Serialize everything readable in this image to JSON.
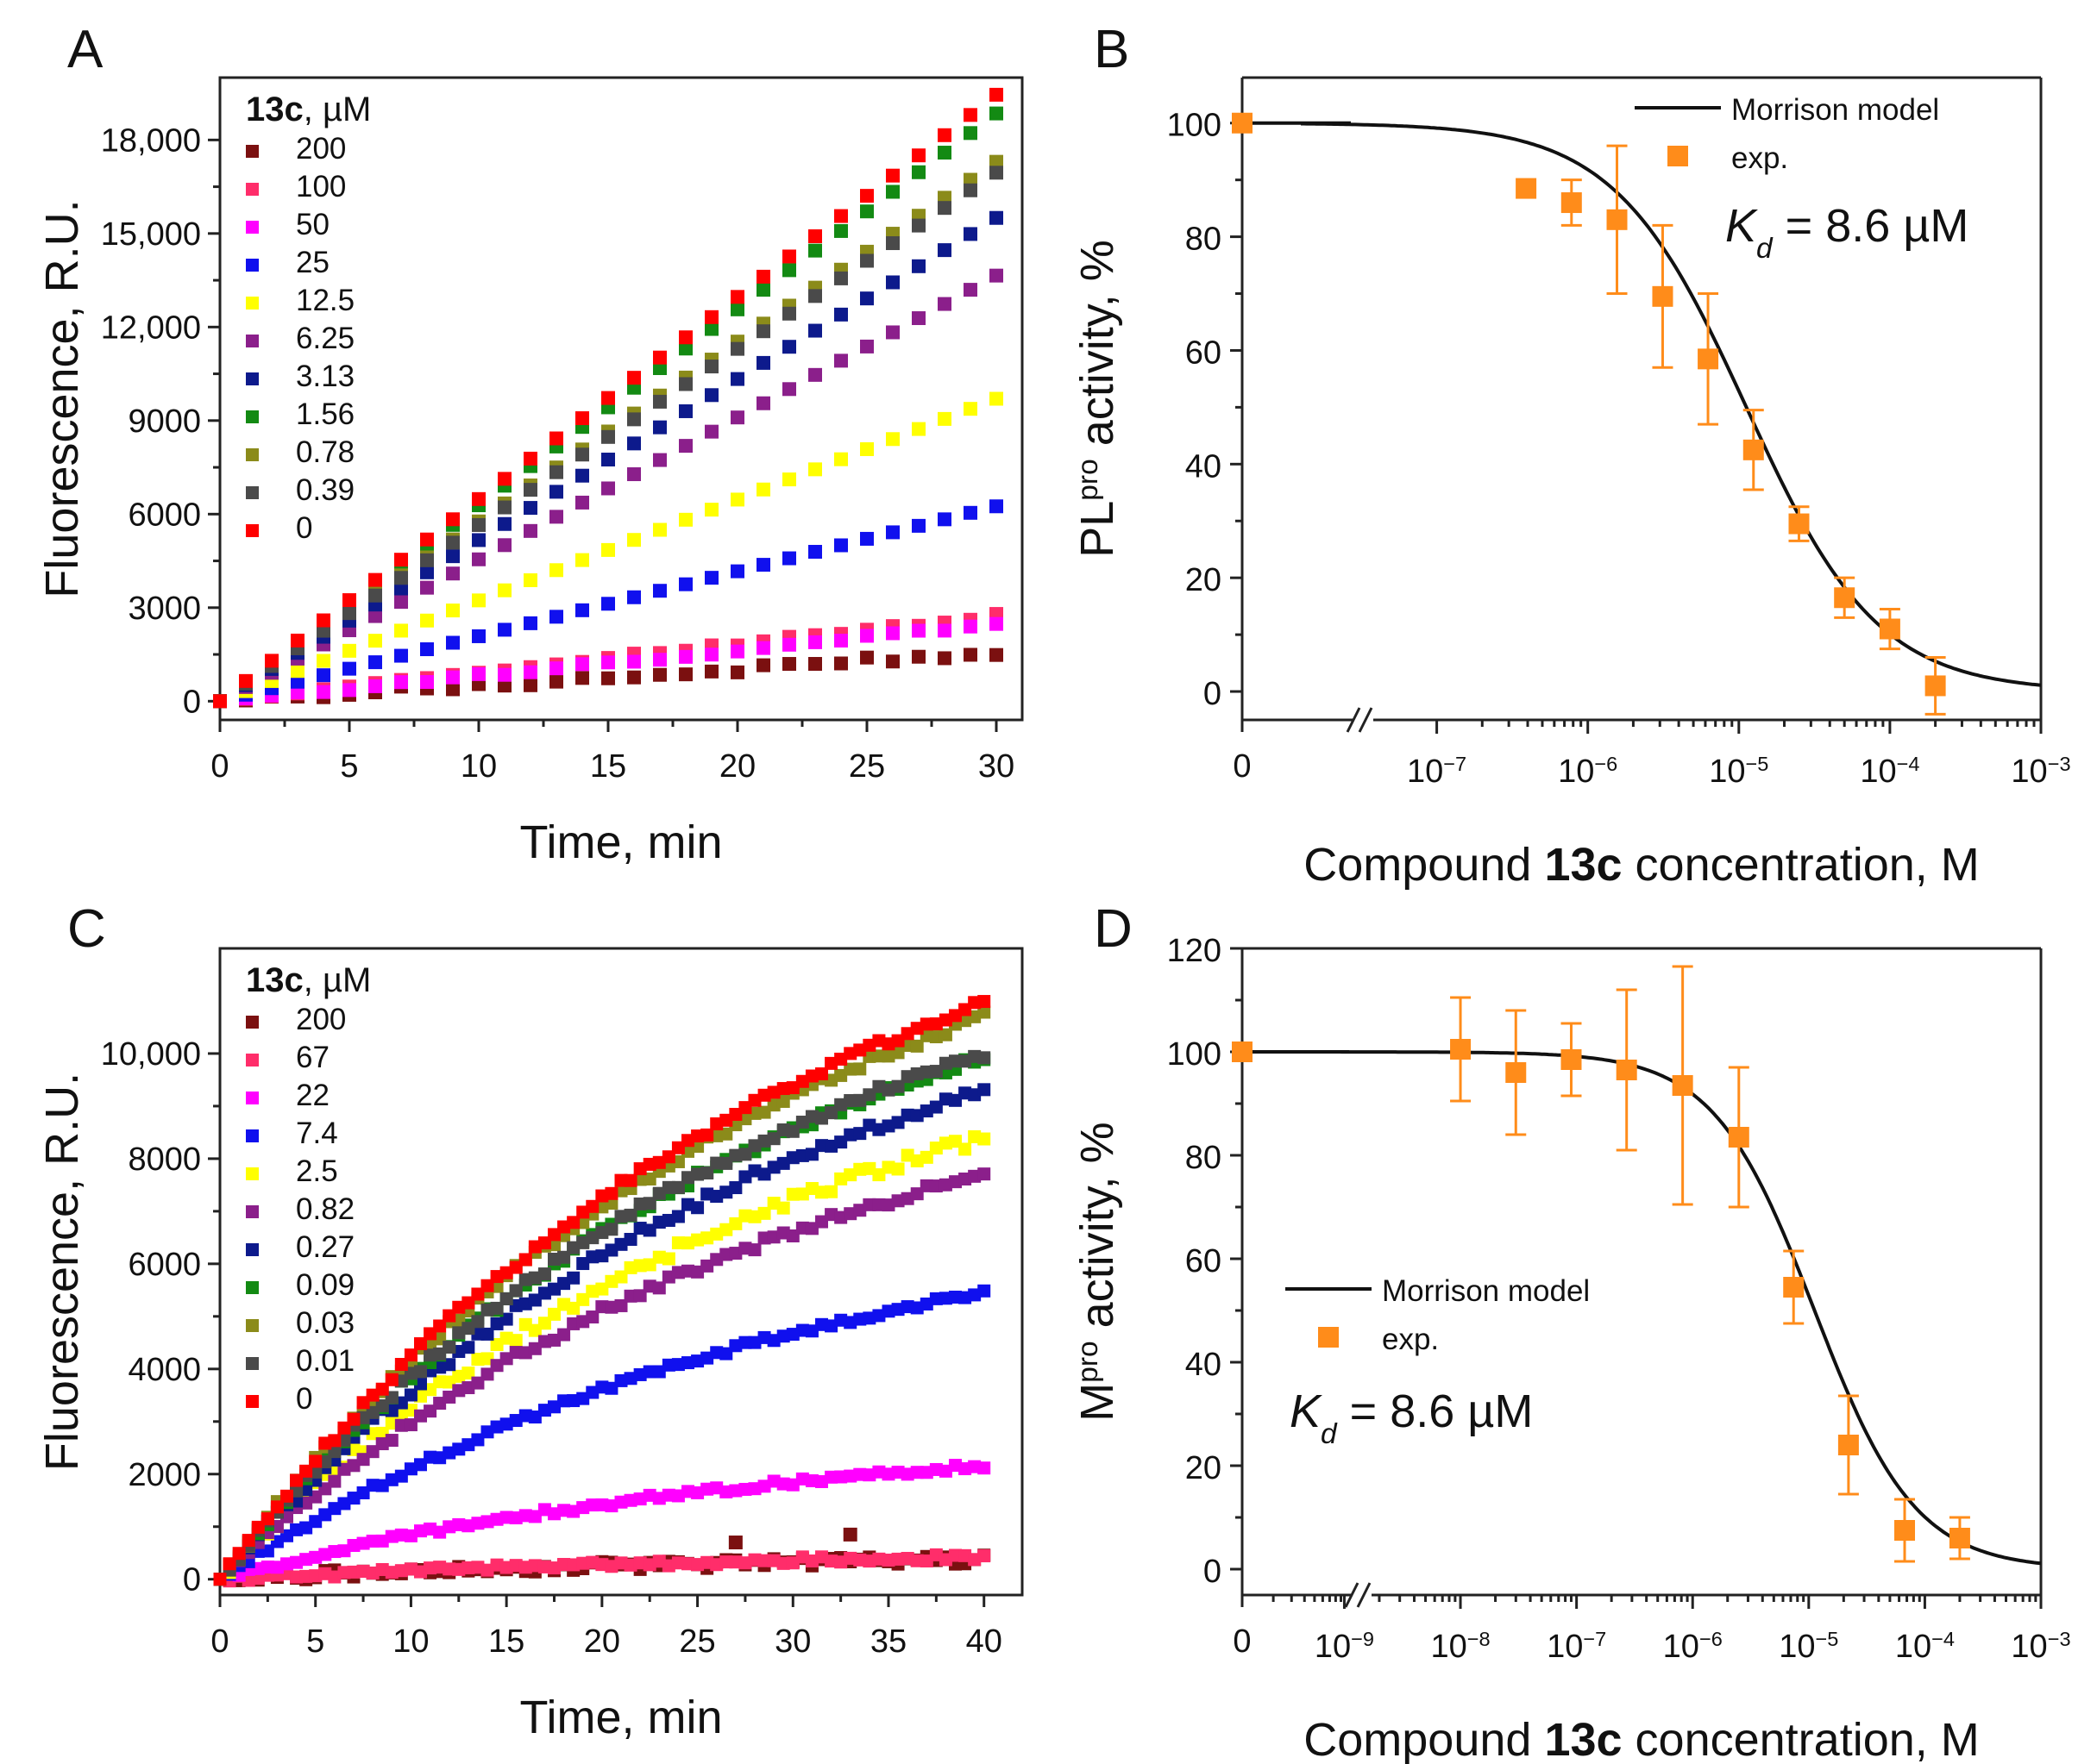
{
  "figure": {
    "panels": [
      {
        "letter": "A"
      },
      {
        "letter": "B"
      },
      {
        "letter": "C"
      },
      {
        "letter": "D"
      }
    ]
  },
  "chart_data": [
    {
      "panel": "A",
      "type": "scatter",
      "title": "",
      "xlabel": "Time, min",
      "ylabel": "Fluorescence, R.U.",
      "xlim": [
        0,
        31
      ],
      "ylim": [
        -600,
        20000
      ],
      "xticks": [
        0,
        5,
        10,
        15,
        20,
        25,
        30
      ],
      "yticks": [
        0,
        3000,
        6000,
        9000,
        12000,
        15000,
        18000
      ],
      "ytick_labels": [
        "0",
        "3000",
        "6000",
        "9000",
        "12,000",
        "15,000",
        "18,000"
      ],
      "legend_title_bold": "13c",
      "legend_title_rest": ", µM",
      "legend_position": "top-left",
      "grid": false,
      "series": [
        {
          "name": "200",
          "color": "#7b1010",
          "final": 1550,
          "noise": 110
        },
        {
          "name": "100",
          "color": "#ff2d6a",
          "final": 2750,
          "noise": 60
        },
        {
          "name": "50",
          "color": "#ff00ff",
          "final": 2450,
          "noise": 60
        },
        {
          "name": "25",
          "color": "#1010ee",
          "final": 6250,
          "noise": 0
        },
        {
          "name": "12.5",
          "color": "#ffff00",
          "final": 9700,
          "noise": 0
        },
        {
          "name": "6.25",
          "color": "#8b1f8b",
          "final": 13650,
          "noise": 0
        },
        {
          "name": "3.13",
          "color": "#0d1a8c",
          "final": 15500,
          "noise": 0
        },
        {
          "name": "1.56",
          "color": "#138a13",
          "final": 18850,
          "noise": 0
        },
        {
          "name": "0.78",
          "color": "#8b8b1a",
          "final": 17300,
          "noise": 0
        },
        {
          "name": "0.39",
          "color": "#4a4a4a",
          "final": 16950,
          "noise": 0
        },
        {
          "name": "0",
          "color": "#ff0000",
          "final": 19450,
          "noise": 0
        }
      ],
      "time_points": {
        "start": 0,
        "end": 30,
        "step": 1
      }
    },
    {
      "panel": "B",
      "type": "scatter",
      "xlabel_prefix": "Compound ",
      "xlabel_bold": "13c",
      "xlabel_suffix": " concentration, M",
      "ylabel_main": "PL",
      "ylabel_sup": "pro",
      "ylabel_rest": " activity, %",
      "ylim": [
        -5,
        108
      ],
      "yticks": [
        0,
        20,
        40,
        60,
        80,
        100
      ],
      "x_zero_label": "0",
      "x_log_decades": [
        -7,
        -6,
        -5,
        -4,
        -3
      ],
      "x_log_range": [
        -7.9,
        -3
      ],
      "legend_line_label": "Morrison model",
      "legend_marker_label": "exp.",
      "legend_position": "top-right",
      "kd_symbol": "K",
      "kd_sub": "d",
      "kd_value": " = 8.6 µM",
      "marker_color": "#ff8c1a",
      "fit_log_ic50": -4.95,
      "points": [
        {
          "x": 0,
          "y": 100,
          "err": 0
        },
        {
          "x": 3.9e-07,
          "y": 88.5,
          "err": 0
        },
        {
          "x": 7.8e-07,
          "y": 86,
          "err": 4
        },
        {
          "x": 1.56e-06,
          "y": 83,
          "err": 13
        },
        {
          "x": 3.13e-06,
          "y": 69.5,
          "err": 12.5
        },
        {
          "x": 6.25e-06,
          "y": 58.5,
          "err": 11.5
        },
        {
          "x": 1.25e-05,
          "y": 42.5,
          "err": 7
        },
        {
          "x": 2.5e-05,
          "y": 29.5,
          "err": 3
        },
        {
          "x": 5e-05,
          "y": 16.5,
          "err": 3.5
        },
        {
          "x": 0.0001,
          "y": 11,
          "err": 3.5
        },
        {
          "x": 0.0002,
          "y": 1,
          "err": 5
        }
      ]
    },
    {
      "panel": "C",
      "type": "scatter",
      "xlabel": "Time, min",
      "ylabel": "Fluorescence, R.U.",
      "xlim": [
        0,
        42
      ],
      "ylim": [
        -300,
        12000
      ],
      "xticks": [
        0,
        5,
        10,
        15,
        20,
        25,
        30,
        35,
        40
      ],
      "yticks": [
        0,
        2000,
        4000,
        6000,
        8000,
        10000
      ],
      "ytick_labels": [
        "0",
        "2000",
        "4000",
        "6000",
        "8000",
        "10,000"
      ],
      "legend_title_bold": "13c",
      "legend_title_rest": ", µM",
      "legend_position": "top-left",
      "grid": false,
      "series": [
        {
          "name": "200",
          "color": "#7b1010",
          "final": 380,
          "noise": 90
        },
        {
          "name": "67",
          "color": "#ff2d6a",
          "final": 420,
          "noise": 60
        },
        {
          "name": "22",
          "color": "#ff00ff",
          "final": 2150,
          "noise": 60
        },
        {
          "name": "7.4",
          "color": "#1010ee",
          "final": 5450,
          "noise": 60
        },
        {
          "name": "2.5",
          "color": "#ffff00",
          "final": 8400,
          "noise": 120
        },
        {
          "name": "0.82",
          "color": "#8b1f8b",
          "final": 7700,
          "noise": 90
        },
        {
          "name": "0.27",
          "color": "#0d1a8c",
          "final": 9300,
          "noise": 100
        },
        {
          "name": "0.09",
          "color": "#138a13",
          "final": 9950,
          "noise": 90
        },
        {
          "name": "0.03",
          "color": "#8b8b1a",
          "final": 10700,
          "noise": 90
        },
        {
          "name": "0.01",
          "color": "#4a4a4a",
          "final": 10000,
          "noise": 90
        },
        {
          "name": "0",
          "color": "#ff0000",
          "final": 10950,
          "noise": 90
        }
      ],
      "outliers": [
        {
          "series": "200",
          "x": 27,
          "y": 700
        },
        {
          "series": "200",
          "x": 33,
          "y": 850
        }
      ],
      "time_points": {
        "start": 0,
        "end": 40,
        "step": 0.5
      }
    },
    {
      "panel": "D",
      "type": "scatter",
      "xlabel_prefix": "Compound ",
      "xlabel_bold": "13c",
      "xlabel_suffix": " concentration, M",
      "ylabel_main": "M",
      "ylabel_sup": "pro",
      "ylabel_rest": " activity, %",
      "ylim": [
        -5,
        120
      ],
      "yticks": [
        0,
        20,
        40,
        60,
        80,
        100,
        120
      ],
      "x_zero_label": "0",
      "x_log_decades": [
        -9,
        -8,
        -7,
        -6,
        -5,
        -4,
        -3
      ],
      "x_log_range": [
        -9.1,
        -3
      ],
      "legend_line_label": "Morrison model",
      "legend_marker_label": "exp.",
      "legend_position": "middle-left",
      "kd_symbol": "K",
      "kd_sub": "d",
      "kd_value": " = 8.6 µM",
      "marker_color": "#ff8c1a",
      "fit_log_ic50": -4.95,
      "points": [
        {
          "x": 0,
          "y": 100,
          "err": 0
        },
        {
          "x": 1e-08,
          "y": 100.5,
          "err": 10
        },
        {
          "x": 3e-08,
          "y": 96,
          "err": 12
        },
        {
          "x": 9e-08,
          "y": 98.5,
          "err": 7
        },
        {
          "x": 2.7e-07,
          "y": 96.5,
          "err": 15.5
        },
        {
          "x": 8.2e-07,
          "y": 93.5,
          "err": 23
        },
        {
          "x": 2.5e-06,
          "y": 83.5,
          "err": 13.5
        },
        {
          "x": 7.4e-06,
          "y": 54.5,
          "err": 7
        },
        {
          "x": 2.2e-05,
          "y": 24,
          "err": 9.5
        },
        {
          "x": 6.7e-05,
          "y": 7.5,
          "err": 6
        },
        {
          "x": 0.0002,
          "y": 6,
          "err": 4
        }
      ]
    }
  ]
}
